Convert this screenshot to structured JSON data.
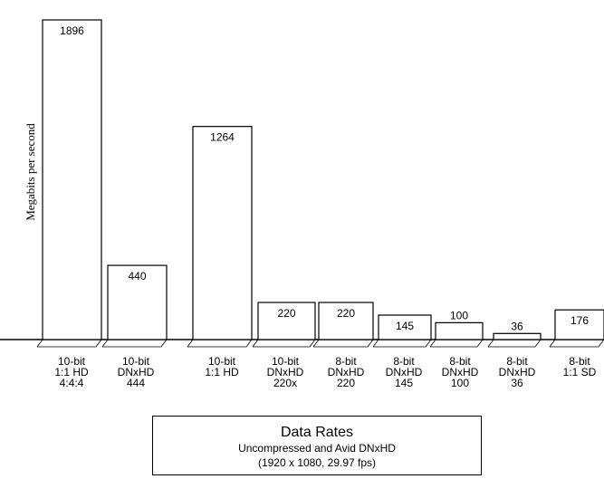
{
  "chart_data": {
    "type": "bar",
    "ylabel": "Megabits per second",
    "ylim": [
      0,
      1896
    ],
    "grid": false,
    "categories": [
      [
        "10-bit",
        "1:1 HD",
        "4:4:4"
      ],
      [
        "10-bit",
        "DNxHD",
        "444"
      ],
      [
        "10-bit",
        "1:1 HD"
      ],
      [
        "10-bit",
        "DNxHD",
        "220x"
      ],
      [
        "8-bit",
        "DNxHD",
        "220"
      ],
      [
        "8-bit",
        "DNxHD",
        "145"
      ],
      [
        "8-bit",
        "DNxHD",
        "100"
      ],
      [
        "8-bit",
        "DNxHD",
        "36"
      ],
      [
        "8-bit",
        "1:1 SD"
      ]
    ],
    "values": [
      1896,
      440,
      1264,
      220,
      220,
      145,
      100,
      36,
      176
    ],
    "value_labels": [
      "1896",
      "440",
      "1264",
      "220",
      "220",
      "145",
      "100",
      "36",
      "176"
    ]
  },
  "caption": {
    "title": "Data Rates",
    "line1": "Uncompressed and Avid DNxHD",
    "line2": "(1920 x 1080, 29.97 fps)"
  }
}
